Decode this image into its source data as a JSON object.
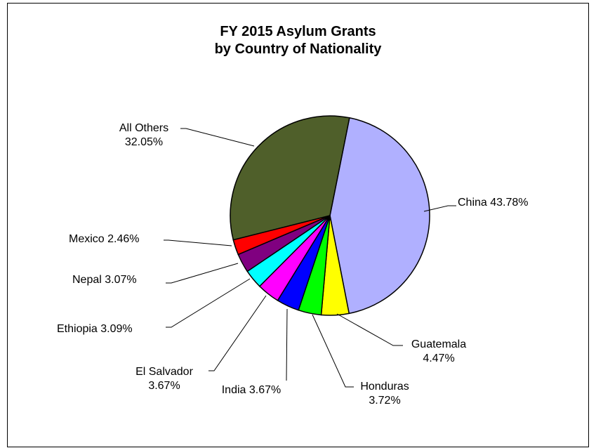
{
  "chart_data": {
    "type": "pie",
    "title": "FY 2015 Asylum Grants",
    "subtitle": "by Country of Nationality",
    "slices": [
      {
        "label": "China",
        "value": 43.78,
        "value_text": "43.78%",
        "color": "#B0B0FF"
      },
      {
        "label": "Guatemala",
        "value": 4.47,
        "value_text": "4.47%",
        "color": "#FFFF00"
      },
      {
        "label": "Honduras",
        "value": 3.72,
        "value_text": "3.72%",
        "color": "#00FF00"
      },
      {
        "label": "India",
        "value": 3.67,
        "value_text": "3.67%",
        "color": "#0000FF"
      },
      {
        "label": "El Salvador",
        "value": 3.67,
        "value_text": "3.67%",
        "color": "#FF00FF"
      },
      {
        "label": "Ethiopia",
        "value": 3.09,
        "value_text": "3.09%",
        "color": "#00FFFF"
      },
      {
        "label": "Nepal",
        "value": 3.07,
        "value_text": "3.07%",
        "color": "#800080"
      },
      {
        "label": "Mexico",
        "value": 2.46,
        "value_text": "2.46%",
        "color": "#FF0000"
      },
      {
        "label": "All Others",
        "value": 32.05,
        "value_text": "32.05%",
        "color": "#4F5F2A"
      }
    ]
  }
}
